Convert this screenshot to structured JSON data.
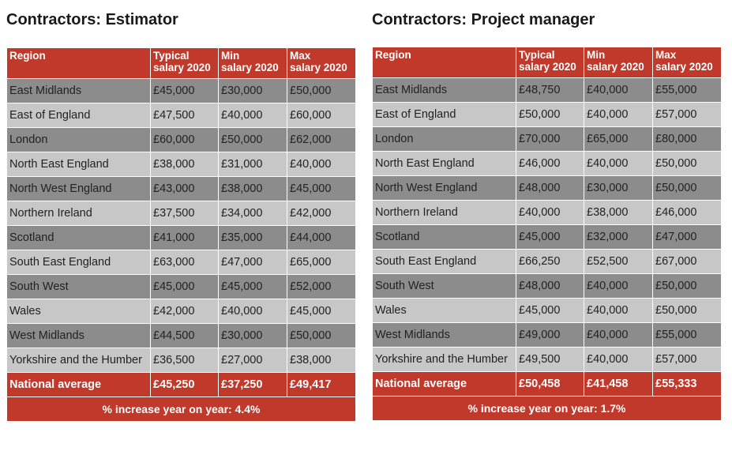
{
  "colors": {
    "header_red": "#c0392b",
    "row_dark": "#8c8c8c",
    "row_light": "#c7c7c7"
  },
  "estimator": {
    "title": "Contractors: Estimator",
    "headers": {
      "region": "Region",
      "typical_l1": "Typical",
      "typical_l2": "salary 2020",
      "min_l1": "Min",
      "min_l2": "salary 2020",
      "max_l1": "Max",
      "max_l2": "salary 2020"
    },
    "rows": [
      [
        "East Midlands",
        "£45,000",
        "£30,000",
        "£50,000"
      ],
      [
        "East of England",
        "£47,500",
        "£40,000",
        "£60,000"
      ],
      [
        "London",
        "£60,000",
        "£50,000",
        "£62,000"
      ],
      [
        "North East England",
        "£38,000",
        "£31,000",
        "£40,000"
      ],
      [
        "North West England",
        "£43,000",
        "£38,000",
        "£45,000"
      ],
      [
        "Northern Ireland",
        "£37,500",
        "£34,000",
        "£42,000"
      ],
      [
        "Scotland",
        "£41,000",
        "£35,000",
        "£44,000"
      ],
      [
        "South East England",
        "£63,000",
        "£47,000",
        "£65,000"
      ],
      [
        "South West",
        "£45,000",
        "£45,000",
        "£52,000"
      ],
      [
        "Wales",
        "£42,000",
        "£40,000",
        "£45,000"
      ],
      [
        "West Midlands",
        "£44,500",
        "£30,000",
        "£50,000"
      ],
      [
        "Yorkshire and the Humber",
        "£36,500",
        "£27,000",
        "£38,000"
      ]
    ],
    "national_average": [
      "National average",
      "£45,250",
      "£37,250",
      "£49,417"
    ],
    "footer": "% increase year on year: 4.4%"
  },
  "project_manager": {
    "title": "Contractors: Project manager",
    "headers": {
      "region": "Region",
      "typical_l1": "Typical",
      "typical_l2": "salary 2020",
      "min_l1": "Min",
      "min_l2": "salary 2020",
      "max_l1": "Max",
      "max_l2": "salary 2020"
    },
    "rows": [
      [
        "East Midlands",
        "£48,750",
        "£40,000",
        "£55,000"
      ],
      [
        "East of England",
        "£50,000",
        "£40,000",
        "£57,000"
      ],
      [
        "London",
        "£70,000",
        "£65,000",
        "£80,000"
      ],
      [
        "North East England",
        "£46,000",
        "£40,000",
        "£50,000"
      ],
      [
        "North West England",
        "£48,000",
        "£30,000",
        "£50,000"
      ],
      [
        "Northern Ireland",
        "£40,000",
        "£38,000",
        "£46,000"
      ],
      [
        "Scotland",
        "£45,000",
        "£32,000",
        "£47,000"
      ],
      [
        "South East England",
        "£66,250",
        "£52,500",
        "£67,000"
      ],
      [
        "South West",
        "£48,000",
        "£40,000",
        "£50,000"
      ],
      [
        "Wales",
        "£45,000",
        "£40,000",
        "£50,000"
      ],
      [
        "West Midlands",
        "£49,000",
        "£40,000",
        "£55,000"
      ],
      [
        "Yorkshire and the Humber",
        "£49,500",
        "£40,000",
        "£57,000"
      ]
    ],
    "national_average": [
      "National average",
      "£50,458",
      "£41,458",
      "£55,333"
    ],
    "footer": "% increase year on year: 1.7%"
  }
}
